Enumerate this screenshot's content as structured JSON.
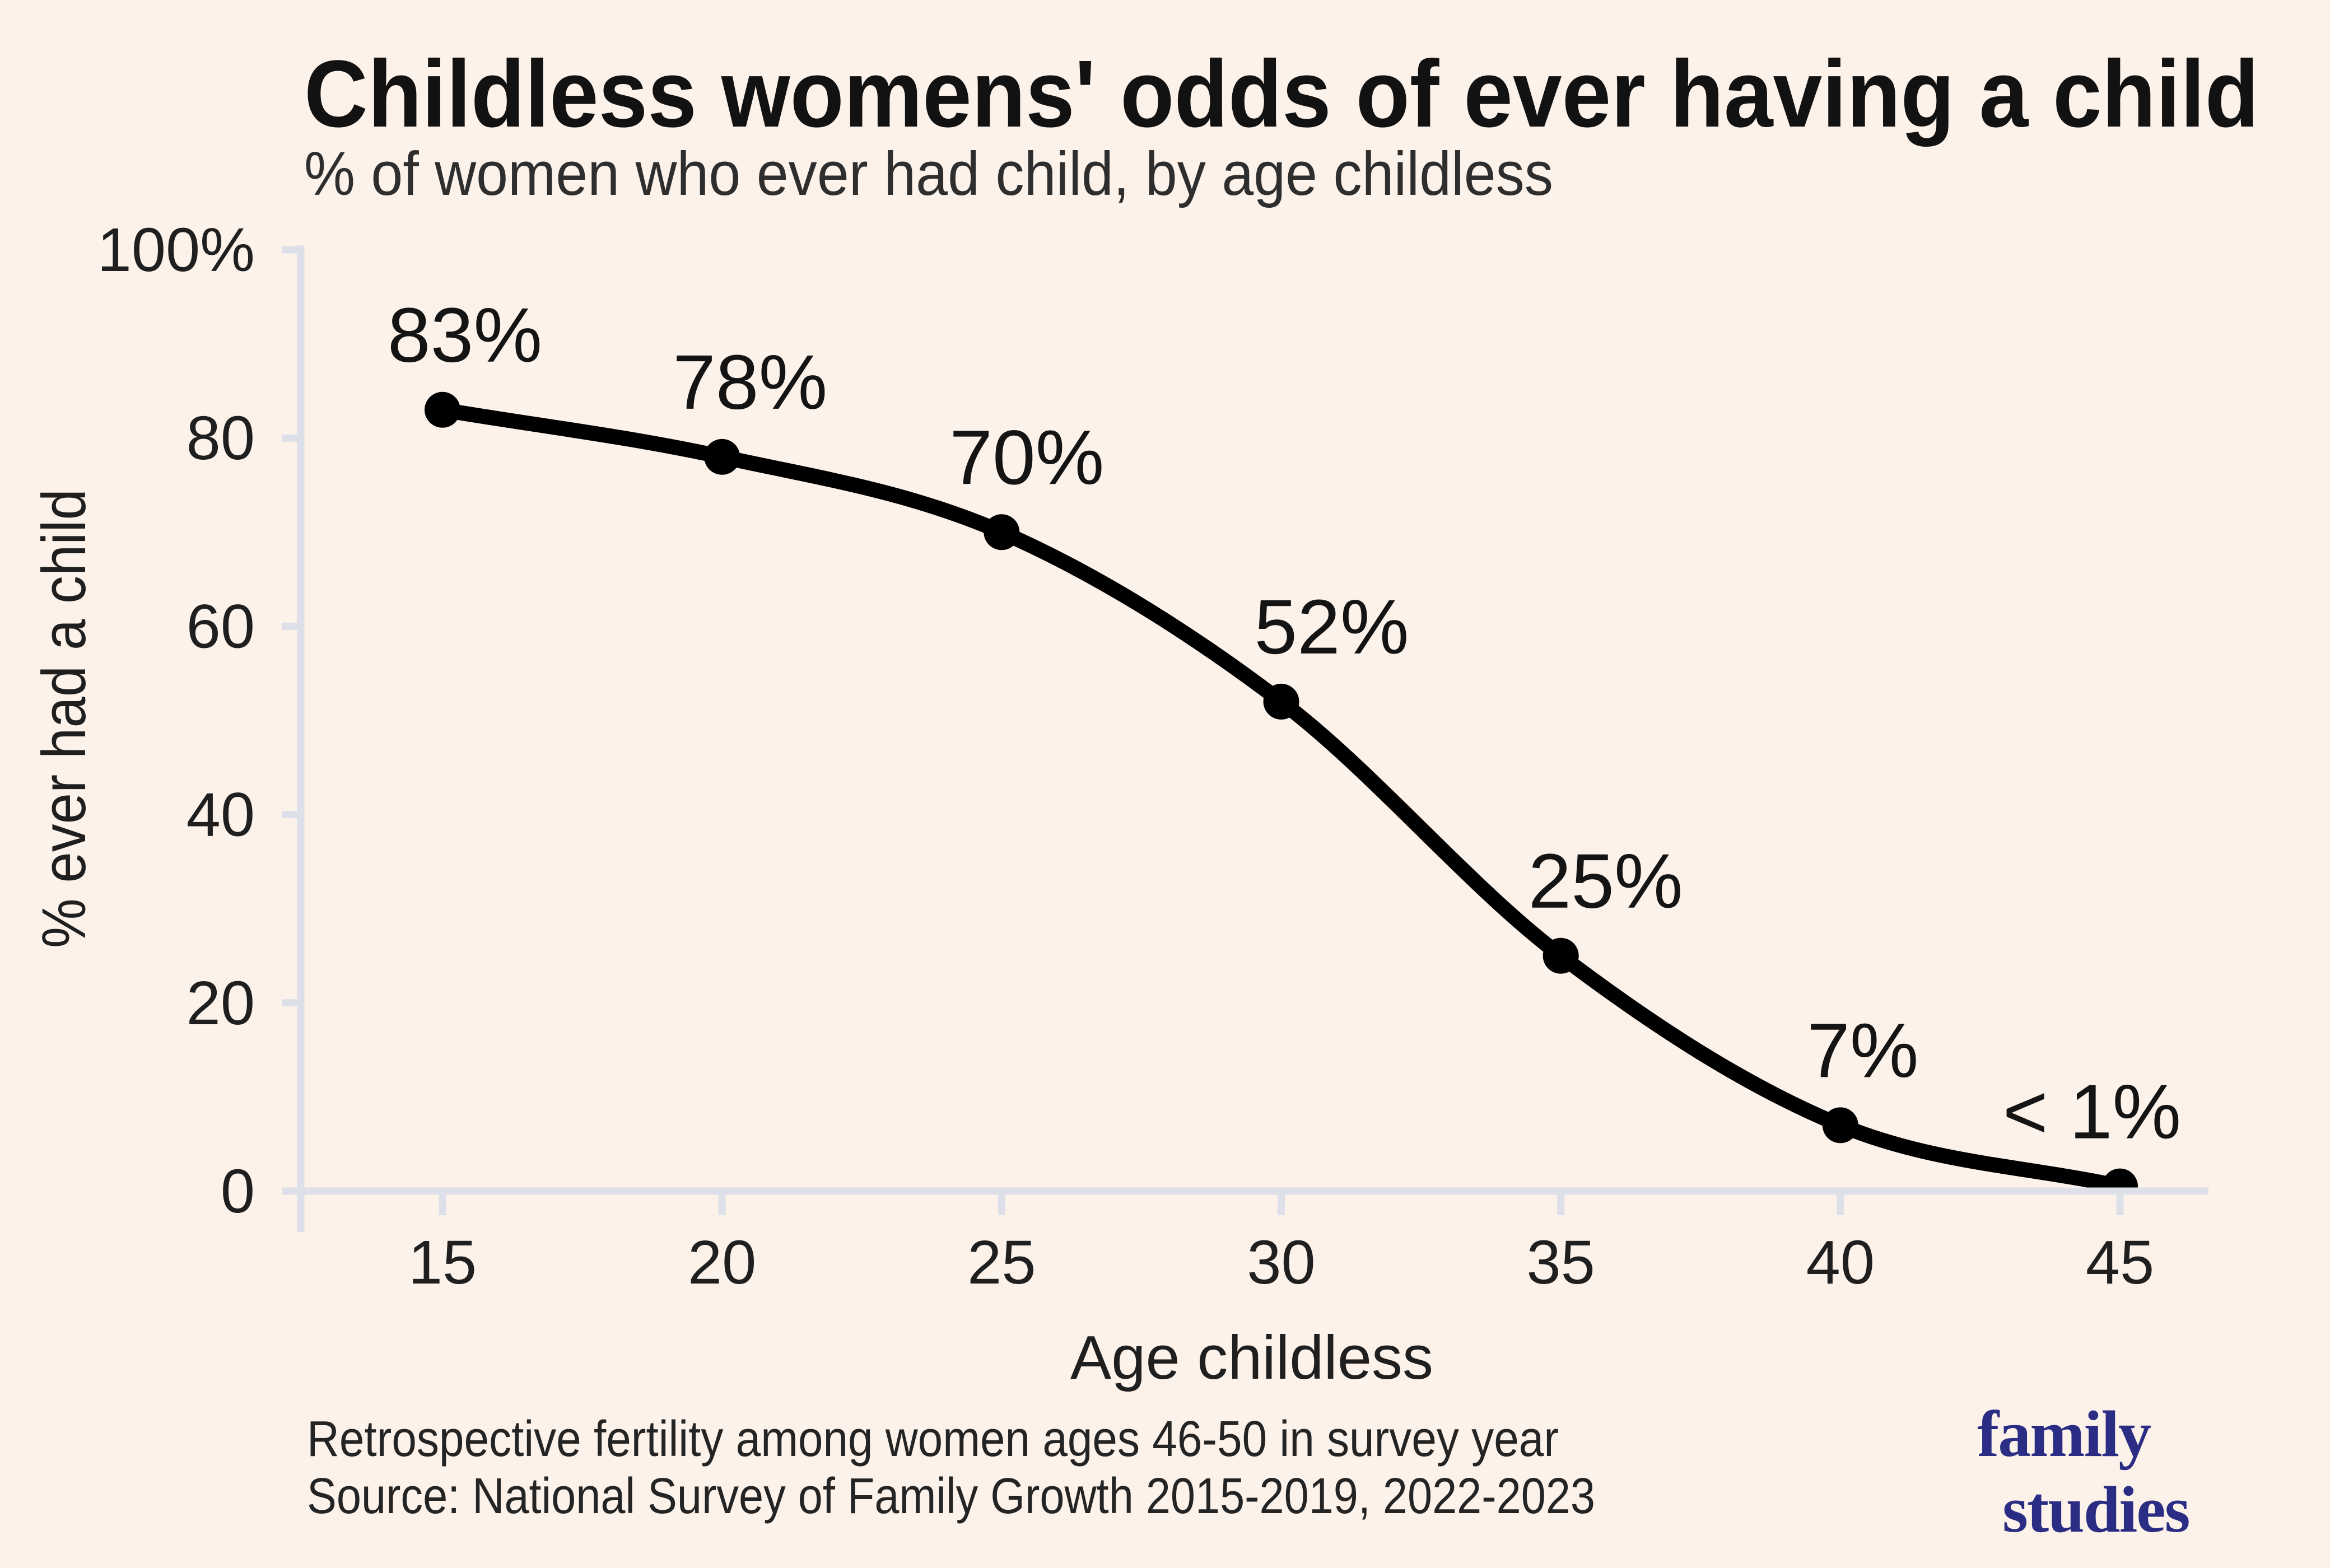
{
  "header": {
    "title": "Childless womens' odds of ever having a child",
    "subtitle": "% of women who ever had child, by age childless"
  },
  "footer": {
    "note": "Retrospective fertility among women ages 46-50 in survey year",
    "source": "Source: National Survey of Family Growth 2015-2019, 2022-2023"
  },
  "logo": {
    "line1": "family",
    "line2": "studies"
  },
  "colors": {
    "background": "#fcf2ea",
    "ink": "#1f1f1f",
    "title_ink": "#121212",
    "axis": "#dde0e8",
    "line": "#000000",
    "logo": "#2b2d84"
  },
  "chart_data": {
    "type": "line",
    "title": "Childless womens' odds of ever having a child",
    "subtitle": "% of women who ever had child, by age childless",
    "x": [
      15,
      20,
      25,
      30,
      35,
      40,
      45
    ],
    "values": [
      83,
      78,
      70,
      52,
      25,
      7,
      0.5
    ],
    "point_labels": [
      "83%",
      "78%",
      "70%",
      "52%",
      "25%",
      "7%",
      "< 1%"
    ],
    "xlabel": "Age childless",
    "ylabel": "% ever had a child",
    "x_tick_labels": [
      "15",
      "20",
      "25",
      "30",
      "35",
      "40",
      "45"
    ],
    "y_ticks": [
      {
        "value": 0,
        "label": "0"
      },
      {
        "value": 20,
        "label": "20"
      },
      {
        "value": 40,
        "label": "40"
      },
      {
        "value": 60,
        "label": "60"
      },
      {
        "value": 80,
        "label": "80"
      },
      {
        "value": 100,
        "label": "100%"
      }
    ],
    "xlim": [
      15,
      45
    ],
    "ylim": [
      0,
      100
    ],
    "grid": false,
    "legend": false,
    "line_color": "#000000",
    "marker": "circle"
  }
}
